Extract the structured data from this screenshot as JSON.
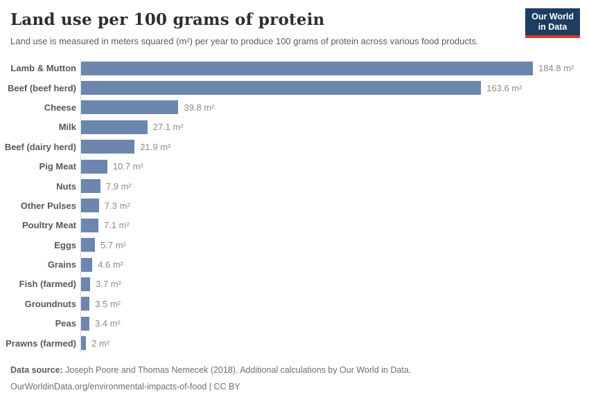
{
  "header": {
    "title": "Land use per 100 grams of protein",
    "subtitle": "Land use is measured in meters squared (m²) per year to produce 100 grams of protein across various food products.",
    "logo": {
      "line1": "Our World",
      "line2": "in Data"
    }
  },
  "chart_data": {
    "type": "bar",
    "orientation": "horizontal",
    "title": "Land use per 100 grams of protein",
    "xlabel": "",
    "ylabel": "",
    "unit": "m²",
    "xlim": [
      0,
      185
    ],
    "grid": false,
    "categories": [
      "Lamb & Mutton",
      "Beef (beef herd)",
      "Cheese",
      "Milk",
      "Beef (dairy herd)",
      "Pig Meat",
      "Nuts",
      "Other Pulses",
      "Poultry Meat",
      "Eggs",
      "Grains",
      "Fish (farmed)",
      "Groundnuts",
      "Peas",
      "Prawns (farmed)"
    ],
    "values": [
      184.8,
      163.6,
      39.8,
      27.1,
      21.9,
      10.7,
      7.9,
      7.3,
      7.1,
      5.7,
      4.6,
      3.7,
      3.5,
      3.4,
      2
    ],
    "value_labels": [
      "184.8 m²",
      "163.6 m²",
      "39.8 m²",
      "27.1 m²",
      "21.9 m²",
      "10.7 m²",
      "7.9 m²",
      "7.3 m²",
      "7.1 m²",
      "5.7 m²",
      "4.6 m²",
      "3.7 m²",
      "3.5 m²",
      "3.4 m²",
      "2 m²"
    ]
  },
  "footer": {
    "source_bold": "Data source:",
    "source_rest": " Joseph Poore and Thomas Nemecek (2018). Additional calculations by Our World in Data.",
    "link_line": "OurWorldinData.org/environmental-impacts-of-food | CC BY"
  },
  "colors": {
    "bar": "#6c86ad",
    "axis_line": "#d9d9d9",
    "logo_bg": "#1d3d63",
    "logo_stripe": "#d73b2a",
    "title_text": "#2e2e2e",
    "label_text": "#54575b",
    "value_text": "#8a8a8a"
  }
}
